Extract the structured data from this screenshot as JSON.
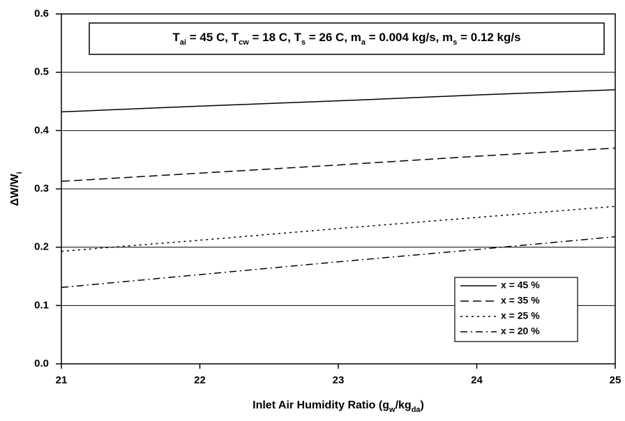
{
  "chart_data": {
    "type": "line",
    "annotation": [
      [
        "T",
        "ai"
      ],
      [
        " = 45 C, T",
        "cw"
      ],
      [
        " = 18 C, T",
        "s"
      ],
      [
        " = 26 C, m",
        "a"
      ],
      [
        " = 0.004 kg/s, m",
        "s"
      ],
      [
        " = 0.12 kg/s",
        ""
      ]
    ],
    "x_label": [
      "Inlet Air Humidity Ratio (g",
      "w",
      "/kg",
      "da",
      ")"
    ],
    "y_label": [
      "ΔW/W",
      "i"
    ],
    "x": [
      21,
      22,
      23,
      24,
      25
    ],
    "series": [
      {
        "name": "x = 45 %",
        "color": "#000000",
        "dash": "solid",
        "values": [
          0.432,
          0.442,
          0.451,
          0.461,
          0.47
        ]
      },
      {
        "name": "x = 35 %",
        "color": "#000000",
        "dash": "dashed",
        "values": [
          0.313,
          0.327,
          0.341,
          0.356,
          0.37
        ]
      },
      {
        "name": "x = 25 %",
        "color": "#000000",
        "dash": "dotted",
        "values": [
          0.193,
          0.212,
          0.232,
          0.251,
          0.27
        ]
      },
      {
        "name": "x = 20 %",
        "color": "#000000",
        "dash": "dashdot",
        "values": [
          0.131,
          0.153,
          0.175,
          0.196,
          0.218
        ]
      }
    ],
    "xlim": [
      21,
      25
    ],
    "xticks": [
      21,
      22,
      23,
      24,
      25
    ],
    "ylim": [
      0,
      0.6
    ],
    "yticks": [
      {
        "value": 0,
        "label": "0.0"
      },
      0.1,
      0.2,
      0.3,
      0.4,
      0.5,
      0.6
    ],
    "grid": true,
    "legend": "lower right"
  }
}
